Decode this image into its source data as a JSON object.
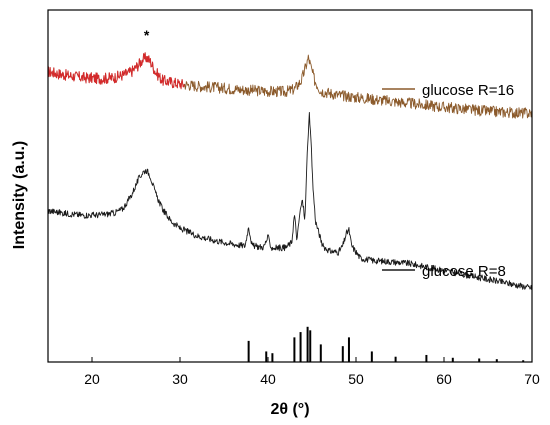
{
  "chart_data": {
    "type": "line",
    "title": "",
    "xlabel": "2θ (°)",
    "ylabel": "Intensity (a.u.)",
    "xlim": [
      15,
      70
    ],
    "ylim": [
      0,
      100
    ],
    "x_ticks": [
      20,
      30,
      40,
      50,
      60,
      70
    ],
    "x_tick_labels": [
      "20",
      "30",
      "40",
      "50",
      "60",
      "70"
    ],
    "y_tick_labels_shown": false,
    "grid": false,
    "legend_placement": "inline-right",
    "annotations": [
      {
        "text": "*",
        "x": 26.2,
        "series": "glucose R=16"
      }
    ],
    "series": [
      {
        "name": "glucose R=16",
        "color": "#8b5a2b",
        "highlight_color": "#e0212b",
        "offset": 68,
        "points": [
          [
            15,
            82.5
          ],
          [
            17,
            81.5
          ],
          [
            19,
            80.8
          ],
          [
            21,
            80.5
          ],
          [
            22.5,
            80.8
          ],
          [
            23.5,
            81.5
          ],
          [
            24.5,
            82.5
          ],
          [
            25.3,
            84.5
          ],
          [
            25.8,
            86.0
          ],
          [
            26.2,
            86.5
          ],
          [
            26.6,
            85.5
          ],
          [
            27.2,
            82.5
          ],
          [
            28,
            80.0
          ],
          [
            30,
            79.0
          ],
          [
            32,
            78.4
          ],
          [
            34,
            78.0
          ],
          [
            36,
            77.6
          ],
          [
            38,
            77.2
          ],
          [
            40,
            76.9
          ],
          [
            42,
            76.8
          ],
          [
            43,
            77.5
          ],
          [
            43.8,
            80.0
          ],
          [
            44.3,
            84.0
          ],
          [
            44.6,
            86.5
          ],
          [
            44.9,
            83.5
          ],
          [
            45.3,
            80.0
          ],
          [
            46,
            77.0
          ],
          [
            48,
            75.8
          ],
          [
            50,
            75.2
          ],
          [
            55,
            73.8
          ],
          [
            60,
            72.4
          ],
          [
            65,
            71.2
          ],
          [
            70,
            70.6
          ]
        ]
      },
      {
        "name": "glucose R=8",
        "color": "#1a1a1a",
        "offset": 2,
        "points": [
          [
            15,
            43.0
          ],
          [
            17,
            42.2
          ],
          [
            19,
            41.7
          ],
          [
            21,
            41.8
          ],
          [
            22.5,
            42.3
          ],
          [
            23.5,
            43.5
          ],
          [
            24.5,
            47.5
          ],
          [
            25.3,
            52.0
          ],
          [
            25.8,
            54.0
          ],
          [
            26.2,
            54.5
          ],
          [
            26.6,
            53.0
          ],
          [
            27.2,
            48.0
          ],
          [
            28,
            43.5
          ],
          [
            29,
            40.0
          ],
          [
            30,
            38.0
          ],
          [
            32,
            35.8
          ],
          [
            34,
            34.5
          ],
          [
            36,
            33.5
          ],
          [
            37.4,
            33.0
          ],
          [
            37.8,
            38.5
          ],
          [
            38.2,
            33.0
          ],
          [
            39.5,
            32.6
          ],
          [
            40,
            35.5
          ],
          [
            40.4,
            32.4
          ],
          [
            42,
            32.5
          ],
          [
            42.7,
            34.0
          ],
          [
            43.0,
            42.0
          ],
          [
            43.3,
            34.5
          ],
          [
            43.6,
            42.0
          ],
          [
            43.9,
            46.0
          ],
          [
            44.2,
            40.5
          ],
          [
            44.5,
            62.0
          ],
          [
            44.7,
            70.0
          ],
          [
            44.9,
            62.0
          ],
          [
            45.1,
            50.0
          ],
          [
            45.4,
            40.0
          ],
          [
            45.8,
            36.5
          ],
          [
            46.2,
            33.0
          ],
          [
            47,
            31.5
          ],
          [
            48,
            31.2
          ],
          [
            48.5,
            33.0
          ],
          [
            48.9,
            36.5
          ],
          [
            49.2,
            37.5
          ],
          [
            49.5,
            33.0
          ],
          [
            50.5,
            29.5
          ],
          [
            52,
            28.8
          ],
          [
            54,
            28.5
          ],
          [
            56,
            28.0
          ],
          [
            58,
            27.0
          ],
          [
            60,
            26.0
          ],
          [
            62,
            25.0
          ],
          [
            64,
            24.0
          ],
          [
            66,
            23.0
          ],
          [
            68,
            22.0
          ],
          [
            70,
            21.0
          ]
        ]
      }
    ],
    "reference_sticks": {
      "color": "#000000",
      "peaks": [
        [
          37.8,
          6.0
        ],
        [
          39.8,
          3.0
        ],
        [
          40.5,
          2.5
        ],
        [
          43.0,
          7.0
        ],
        [
          43.7,
          8.5
        ],
        [
          44.5,
          10.0
        ],
        [
          44.8,
          9.0
        ],
        [
          46.0,
          5.0
        ],
        [
          48.5,
          4.5
        ],
        [
          49.2,
          7.0
        ],
        [
          51.8,
          3.0
        ],
        [
          54.5,
          1.5
        ],
        [
          58.0,
          2.0
        ],
        [
          61.0,
          1.2
        ],
        [
          64.0,
          1.0
        ],
        [
          66.0,
          0.8
        ],
        [
          69.0,
          0.5
        ]
      ]
    }
  }
}
